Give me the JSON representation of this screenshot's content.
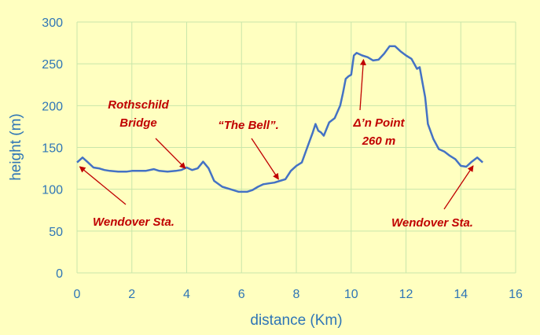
{
  "chart_data": {
    "type": "line",
    "title": "",
    "xlabel": "distance (Km)",
    "ylabel": "height (m)",
    "xlim": [
      0,
      16
    ],
    "ylim": [
      0,
      300
    ],
    "x_ticks": [
      0,
      2,
      4,
      6,
      8,
      10,
      12,
      14,
      16
    ],
    "y_ticks": [
      0,
      50,
      100,
      150,
      200,
      250,
      300
    ],
    "grid": true,
    "colors": {
      "background": "#FFFFC0",
      "grid": "#C8E6AA",
      "line": "#4472C4",
      "axis_text": "#2E75B6",
      "annotation": "#C00000"
    },
    "series": [
      {
        "x": [
          0,
          0.2,
          0.4,
          0.6,
          0.8,
          1.0,
          1.2,
          1.5,
          1.8,
          2.0,
          2.2,
          2.5,
          2.8,
          3.0,
          3.3,
          3.6,
          3.8,
          4.0,
          4.2,
          4.4,
          4.6,
          4.8,
          5.0,
          5.3,
          5.6,
          5.9,
          6.2,
          6.4,
          6.6,
          6.8,
          7.0,
          7.2,
          7.4,
          7.6,
          7.8,
          8.0,
          8.2,
          8.4,
          8.6,
          8.7,
          8.8,
          8.9,
          9.0,
          9.2,
          9.4,
          9.6,
          9.7,
          9.8,
          9.9,
          10.0,
          10.1,
          10.2,
          10.4,
          10.6,
          10.8,
          11.0,
          11.2,
          11.4,
          11.6,
          11.8,
          12.0,
          12.2,
          12.4,
          12.5,
          12.6,
          12.7,
          12.8,
          13.0,
          13.2,
          13.4,
          13.6,
          13.8,
          14.0,
          14.2,
          14.4,
          14.6,
          14.8
        ],
        "y": [
          132,
          138,
          132,
          126,
          125,
          123,
          122,
          121,
          121,
          122,
          122,
          122,
          124,
          122,
          121,
          122,
          123,
          126,
          123,
          125,
          133,
          125,
          110,
          103,
          100,
          97,
          97,
          99,
          103,
          106,
          107,
          108,
          110,
          112,
          122,
          128,
          132,
          150,
          168,
          178,
          170,
          168,
          164,
          180,
          185,
          200,
          215,
          232,
          235,
          237,
          260,
          263,
          260,
          258,
          254,
          255,
          262,
          271,
          271,
          265,
          260,
          256,
          244,
          246,
          228,
          210,
          178,
          160,
          148,
          145,
          140,
          136,
          128,
          127,
          133,
          138,
          132
        ]
      }
    ],
    "annotations": [
      {
        "lines": [
          "Rothschild",
          "Bridge"
        ],
        "target": [
          3.95,
          125
        ]
      },
      {
        "lines": [
          "“The Bell”."
        ],
        "target": [
          7.35,
          112
        ]
      },
      {
        "lines": [
          "Δ’n Point",
          "260 m"
        ],
        "target": [
          10.45,
          255
        ]
      },
      {
        "lines": [
          "Wendover Sta."
        ],
        "target": [
          0.1,
          127
        ]
      },
      {
        "lines": [
          "Wendover Sta."
        ],
        "target": [
          14.45,
          128
        ]
      }
    ]
  }
}
